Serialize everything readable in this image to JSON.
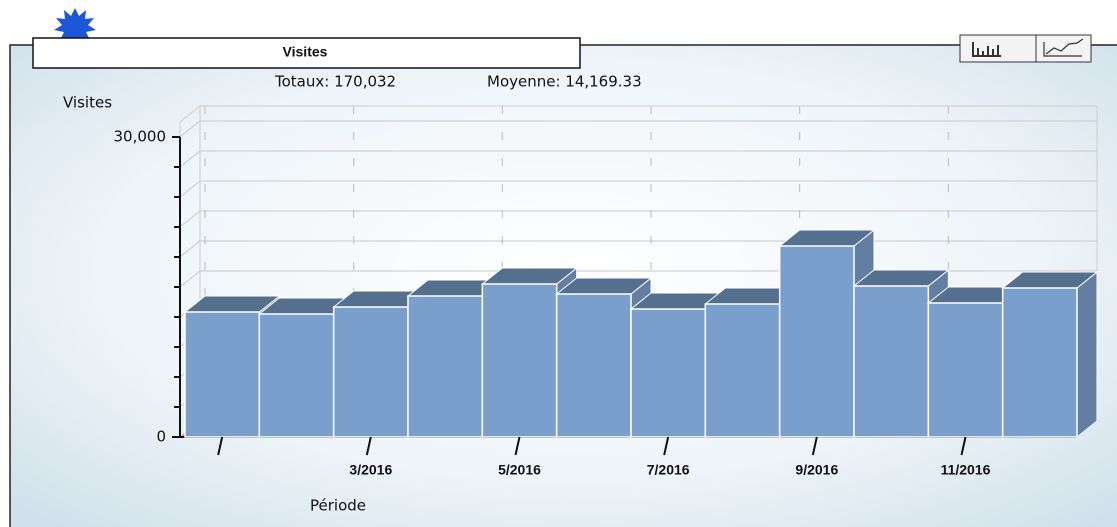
{
  "chart_data": {
    "type": "bar3d",
    "title": "Visites",
    "totals_text": "Totaux: 170,032",
    "average_text": "Moyenne: 14,169.33",
    "y_label": "Visites",
    "x_label": "Période",
    "categories": [
      null,
      null,
      "3/2016",
      null,
      "5/2016",
      null,
      "7/2016",
      null,
      "9/2016",
      null,
      "11/2016",
      null
    ],
    "values": [
      12500,
      12300,
      13000,
      14100,
      15300,
      14300,
      12800,
      13300,
      19100,
      15100,
      13400,
      14900
    ],
    "color": "#7a9fcc",
    "ylim": [
      0,
      30000
    ],
    "yticks": [
      0,
      {
        "value": 30000,
        "label": "30,000"
      }
    ],
    "minor_yticks": [
      3000,
      6000,
      9000,
      12000,
      15000,
      18000,
      21000,
      24000,
      27000
    ],
    "grid": true
  }
}
